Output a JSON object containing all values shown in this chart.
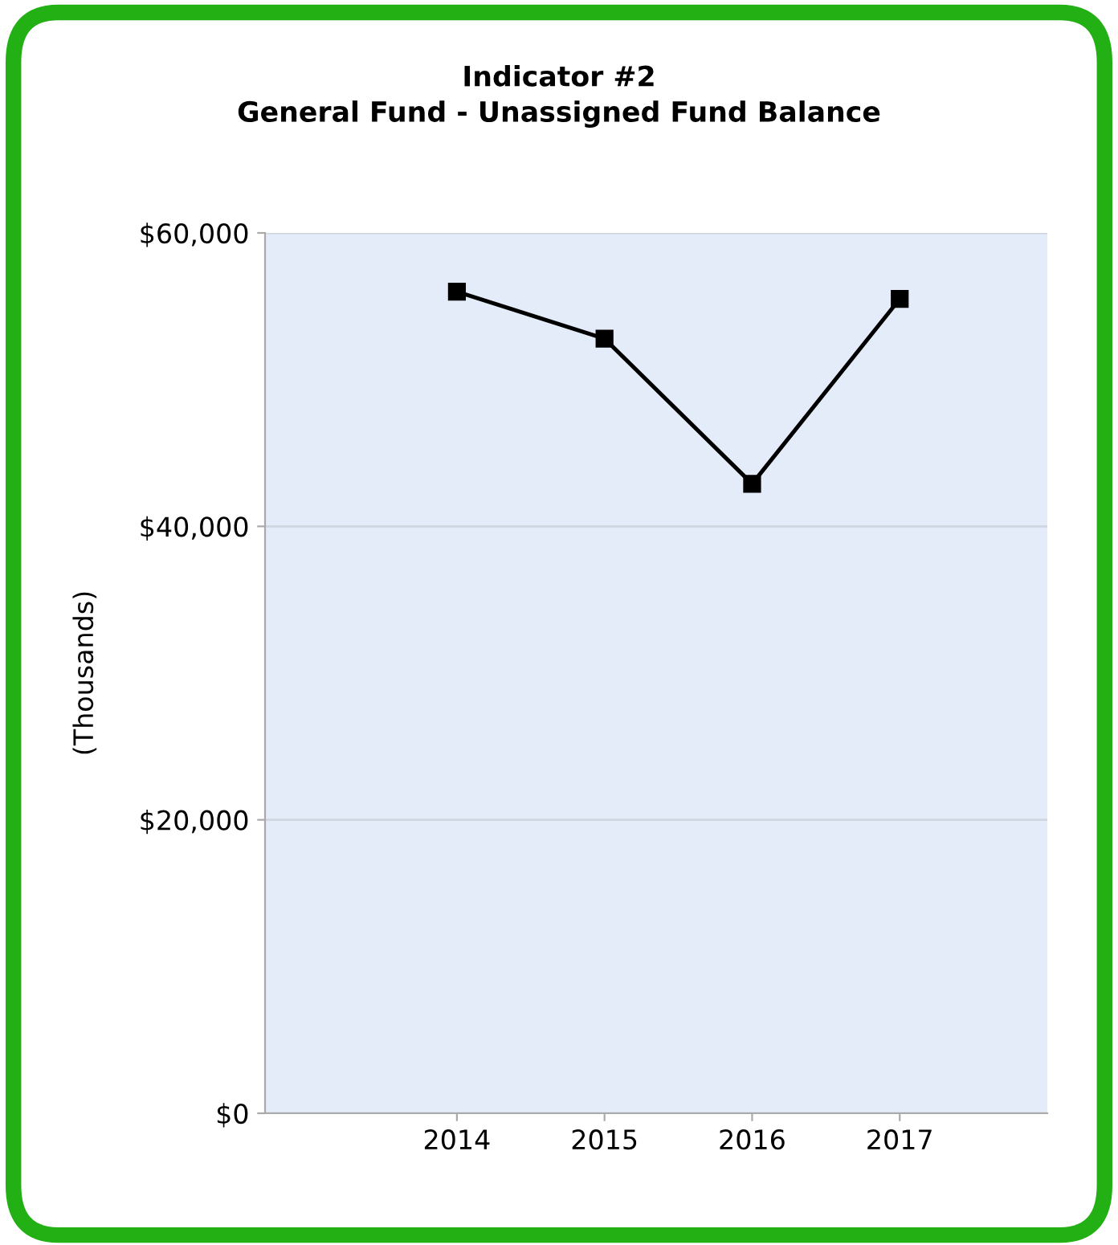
{
  "chart_data": {
    "type": "line",
    "title": "Indicator #2\nGeneral Fund - Unassigned Fund Balance",
    "ylabel": "(Thousands)",
    "categories": [
      "2014",
      "2015",
      "2016",
      "2017"
    ],
    "series": [
      {
        "color": "#000000",
        "values": [
          56000,
          52800,
          42900,
          55500
        ]
      }
    ],
    "ylim": [
      0,
      60000
    ],
    "yticks": [
      {
        "value": 0,
        "label": "$0"
      },
      {
        "value": 20000,
        "label": "$20,000"
      },
      {
        "value": 40000,
        "label": "$40,000"
      },
      {
        "value": 60000,
        "label": "$60,000"
      }
    ],
    "grid": "y",
    "marker": "square",
    "line_style": "solid"
  }
}
